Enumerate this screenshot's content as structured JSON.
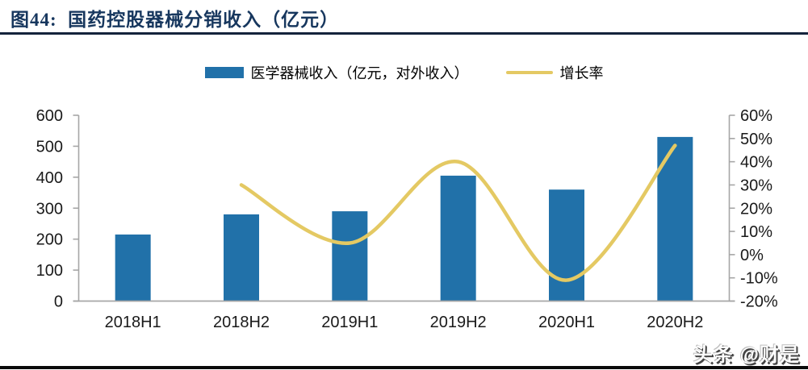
{
  "figure": {
    "title": "图44:  国药控股器械分销收入（亿元）",
    "watermark": "头条 @财是"
  },
  "chart_data": {
    "type": "bar+line",
    "title": "国药控股器械分销收入（亿元）",
    "categories": [
      "2018H1",
      "2018H2",
      "2019H1",
      "2019H2",
      "2020H1",
      "2020H2"
    ],
    "series": [
      {
        "name": "医学器械收入（亿元，对外收入）",
        "type": "bar",
        "axis": "left",
        "color": "#2171A9",
        "values": [
          215,
          280,
          290,
          405,
          360,
          530
        ]
      },
      {
        "name": "增长率",
        "type": "line",
        "axis": "right",
        "color": "#E4C963",
        "values": [
          null,
          30,
          5,
          40,
          -11,
          47
        ],
        "unit": "%"
      }
    ],
    "left_axis": {
      "min": 0,
      "max": 600,
      "ticks": [
        "0",
        "100",
        "200",
        "300",
        "400",
        "500",
        "600"
      ]
    },
    "right_axis": {
      "min": -20,
      "max": 60,
      "ticks": [
        "-20%",
        "-10%",
        "0%",
        "10%",
        "20%",
        "30%",
        "40%",
        "50%",
        "60%"
      ]
    },
    "grid": false,
    "legend_position": "top",
    "axis_color": "#A6A6A6"
  }
}
